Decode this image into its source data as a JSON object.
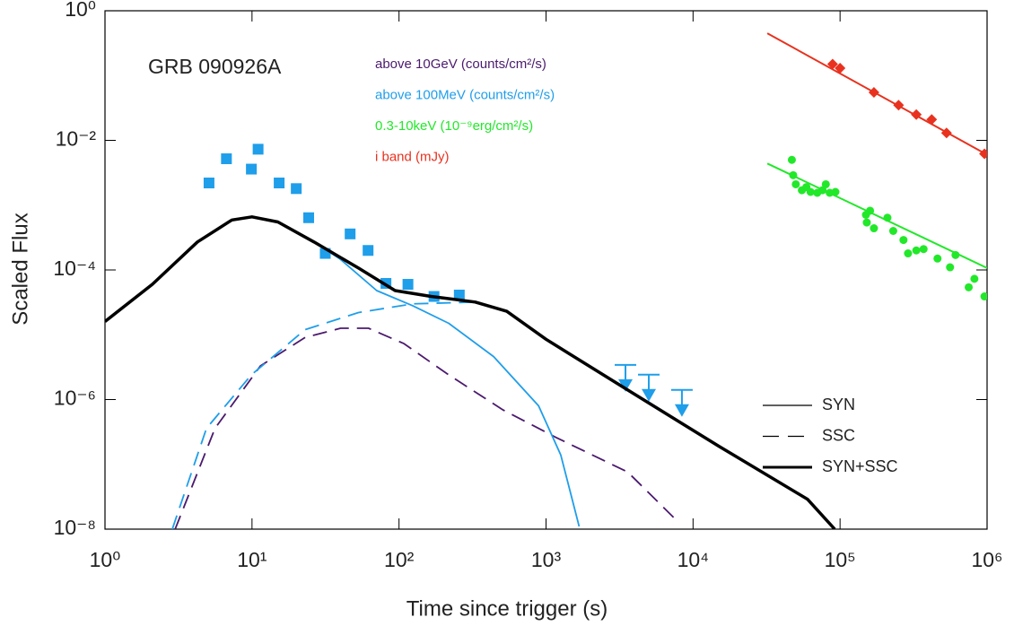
{
  "chart_data": {
    "type": "line",
    "annotation": "GRB 090926A",
    "xlabel": "Time since trigger (s)",
    "ylabel": "Scaled Flux",
    "xlog": true,
    "ylog": true,
    "xlim": [
      1,
      1000000
    ],
    "ylim": [
      1e-08,
      1
    ],
    "xticks": [
      {
        "value": 1,
        "label": "10⁰"
      },
      {
        "value": 10,
        "label": "10¹"
      },
      {
        "value": 100,
        "label": "10²"
      },
      {
        "value": 1000,
        "label": "10³"
      },
      {
        "value": 10000,
        "label": "10⁴"
      },
      {
        "value": 100000,
        "label": "10⁵"
      },
      {
        "value": 1000000,
        "label": "10⁶"
      }
    ],
    "yticks": [
      {
        "value": 1,
        "label": "10⁰"
      },
      {
        "value": 0.01,
        "label": "10⁻²"
      },
      {
        "value": 0.0001,
        "label": "10⁻⁴"
      },
      {
        "value": 1e-06,
        "label": "10⁻⁶"
      },
      {
        "value": 1e-08,
        "label": "10⁻⁸"
      }
    ],
    "legend": [
      {
        "label": "SYN",
        "style": "solid",
        "width": 1.2
      },
      {
        "label": "SSC",
        "style": "dashed",
        "width": 1.2
      },
      {
        "label": "SYN+SSC",
        "style": "solid",
        "width": 3
      }
    ],
    "series": [
      {
        "name": "above 10GeV (counts/cm²/s)",
        "color": "#4b1a6e",
        "style": "dashed",
        "width": 1.8,
        "x": [
          3.0,
          5.6,
          11.4,
          23,
          40,
          62,
          108,
          218,
          510,
          1170,
          3600,
          7900
        ],
        "values": [
          1e-08,
          3.6e-07,
          3.3e-06,
          9.1e-06,
          1.26e-05,
          1.26e-05,
          7.3e-06,
          2.4e-06,
          6.9e-07,
          2.6e-07,
          7.6e-08,
          1.3e-08
        ]
      },
      {
        "name": "above 100MeV (counts/cm²/s)",
        "color": "#1f9eea",
        "marker": "square",
        "x": [
          5.1,
          6.7,
          9.9,
          11,
          15.3,
          20,
          24.3,
          31.5,
          46.5,
          61.6,
          81.5,
          115,
          173,
          257
        ],
        "values": [
          0.0022,
          0.0052,
          0.0036,
          0.0073,
          0.0022,
          0.0018,
          0.00064,
          0.00018,
          0.00036,
          0.0002,
          6.2e-05,
          6e-05,
          3.9e-05,
          4.1e-05
        ]
      },
      {
        "name": "0.3-10keV (10⁻⁹erg/cm²/s)",
        "color": "#22e82a",
        "marker": "circle",
        "x": [
          47000,
          48000,
          50000,
          55000,
          59000,
          63000,
          70000,
          76000,
          80000,
          85000,
          93000,
          150000,
          152000,
          160000,
          170000,
          210000,
          230000,
          270000,
          290000,
          330000,
          370000,
          460000,
          560000,
          610000,
          750000,
          820000,
          960000
        ],
        "values": [
          0.005,
          0.0029,
          0.0021,
          0.0017,
          0.0019,
          0.0016,
          0.00155,
          0.0017,
          0.0021,
          0.00155,
          0.0016,
          0.00071,
          0.00054,
          0.00082,
          0.00044,
          0.00064,
          0.0004,
          0.00029,
          0.00018,
          0.0002,
          0.00021,
          0.00015,
          0.00011,
          0.00017,
          5.4e-05,
          7.3e-05,
          3.9e-05
        ]
      },
      {
        "name": "i band (mJy)",
        "color": "#e8321f",
        "marker": "diamond",
        "x": [
          89000,
          100000,
          170000,
          250000,
          330000,
          420000,
          530000,
          960000
        ],
        "values": [
          0.15,
          0.13,
          0.055,
          0.035,
          0.025,
          0.021,
          0.013,
          0.0062
        ]
      },
      {
        "color": "#1f9eea",
        "marker": "triangle-down",
        "x": [
          3470,
          5000,
          8400
        ],
        "values": [
          1.7e-06,
          1.2e-06,
          7e-07
        ]
      },
      {
        "color": "#1f9eea",
        "style": "solid",
        "width": 1.8,
        "x": [
          1,
          2.1,
          4.25,
          7.3,
          10,
          15,
          26.4,
          40,
          70.5,
          124,
          218,
          440,
          890,
          1260,
          1680
        ],
        "values": [
          1.6e-05,
          6e-05,
          0.00027,
          0.00059,
          0.00066,
          0.00055,
          0.00027,
          0.000145,
          4.8e-05,
          2.8e-05,
          1.5e-05,
          4.6e-06,
          8e-07,
          1.4e-07,
          1.1e-08
        ]
      },
      {
        "color": "#1f9eea",
        "style": "dashed",
        "width": 1.8,
        "x": [
          2.87,
          4.9,
          9.9,
          23,
          53,
          124,
          330,
          540,
          1000
        ],
        "values": [
          1e-08,
          3.6e-07,
          2.4e-06,
          1.2e-05,
          2.2e-05,
          3e-05,
          3.2e-05,
          2.3e-05,
          8.5e-06
        ]
      },
      {
        "color": "#000000",
        "style": "solid",
        "width": 3.5,
        "x": [
          1,
          2.1,
          4.25,
          7.3,
          10,
          15,
          26.4,
          53,
          94,
          165,
          330,
          540,
          1000,
          3600,
          15000,
          60000,
          92000
        ],
        "values": [
          1.6e-05,
          6e-05,
          0.00027,
          0.00059,
          0.00066,
          0.00055,
          0.00027,
          0.000107,
          4.8e-05,
          3.9e-05,
          3.2e-05,
          2.3e-05,
          8.5e-06,
          1.4e-06,
          1.9e-07,
          2.9e-08,
          1e-08
        ]
      },
      {
        "color": "#e8321f",
        "style": "solid",
        "width": 2,
        "x": [
          32000,
          1000000
        ],
        "values": [
          0.45,
          0.006
        ]
      },
      {
        "color": "#22e82a",
        "style": "solid",
        "width": 2,
        "x": [
          32000,
          1000000
        ],
        "values": [
          0.0044,
          0.000107
        ]
      }
    ]
  }
}
